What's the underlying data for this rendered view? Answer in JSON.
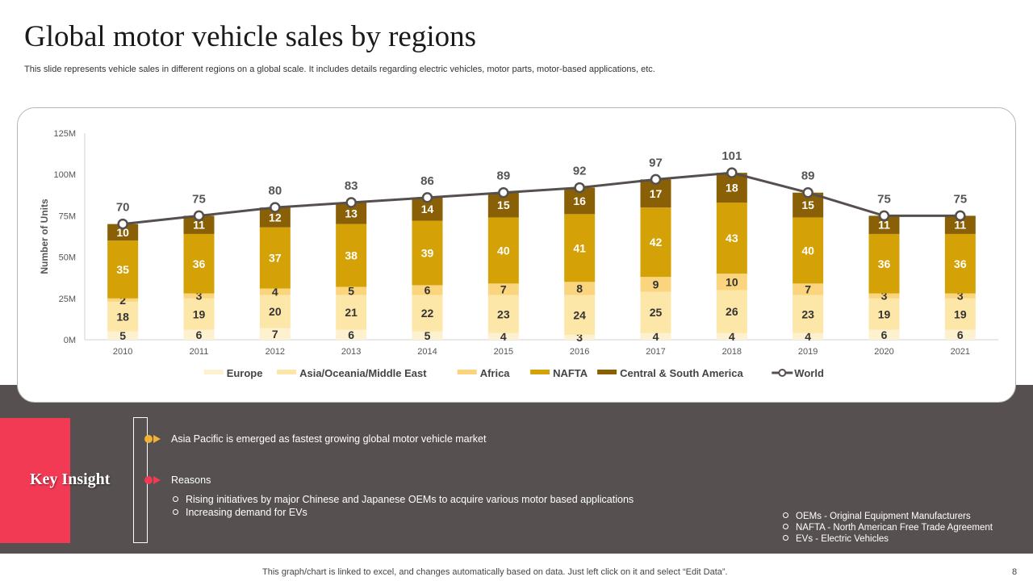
{
  "slide": {
    "title": "Global motor vehicle sales by regions",
    "subtitle": "This slide represents vehicle sales in different regions on a global scale. It includes details regarding electric vehicles, motor parts, motor-based applications, etc.",
    "footer_note": "This graph/chart is linked to excel,  and changes automatically based on data. Just left click on it and select “Edit Data”.",
    "page_number": "8"
  },
  "insight": {
    "label": "Key Insight",
    "point_1": "Asia Pacific is emerged  as fastest growing global motor vehicle market",
    "point_2": "Reasons",
    "sub_points": [
      "Rising initiatives by major Chinese and Japanese OEMs to acquire various  motor based applications",
      "Increasing demand for EVs"
    ],
    "abbreviations": [
      "OEMs - Original Equipment Manufacturers",
      "NAFTA  - North American Free Trade Agreement",
      "EVs - Electric Vehicles"
    ],
    "colors": {
      "box": "#f33a55",
      "point_1": "#f2b233",
      "point_2": "#f33a55"
    }
  },
  "chart_data": {
    "type": "bar",
    "stacked": true,
    "ylabel": "Number of Units",
    "ylim": [
      0,
      125
    ],
    "yticks": [
      "0M",
      "25M",
      "50M",
      "75M",
      "100M",
      "125M"
    ],
    "categories": [
      "2010",
      "2011",
      "2012",
      "2013",
      "2014",
      "2015",
      "2016",
      "2017",
      "2018",
      "2019",
      "2020",
      "2021"
    ],
    "series": [
      {
        "name": "Europe",
        "values": [
          5,
          6,
          7,
          6,
          5,
          4,
          3,
          4,
          4,
          4,
          6,
          6
        ],
        "color": "#fdf1cf",
        "label_color": "#333333"
      },
      {
        "name": "Asia/Oceania/Middle East",
        "values": [
          18,
          19,
          20,
          21,
          22,
          23,
          24,
          25,
          26,
          23,
          19,
          19
        ],
        "color": "#fde7a8",
        "label_color": "#333333"
      },
      {
        "name": "Africa",
        "values": [
          2,
          3,
          4,
          5,
          6,
          7,
          8,
          9,
          10,
          7,
          3,
          3
        ],
        "color": "#fad57e",
        "label_color": "#333333"
      },
      {
        "name": "NAFTA",
        "values": [
          35,
          36,
          37,
          38,
          39,
          40,
          41,
          42,
          43,
          40,
          36,
          36
        ],
        "color": "#d4a207",
        "label_color": "#ffffff"
      },
      {
        "name": "Central & South America",
        "values": [
          10,
          11,
          12,
          13,
          14,
          15,
          16,
          17,
          18,
          15,
          11,
          11
        ],
        "color": "#8a6006",
        "label_color": "#ffffff"
      }
    ],
    "line": {
      "name": "World",
      "values": [
        70,
        75,
        80,
        83,
        86,
        89,
        92,
        97,
        101,
        89,
        75,
        75
      ],
      "color": "#55504d"
    },
    "legend_position": "bottom"
  }
}
